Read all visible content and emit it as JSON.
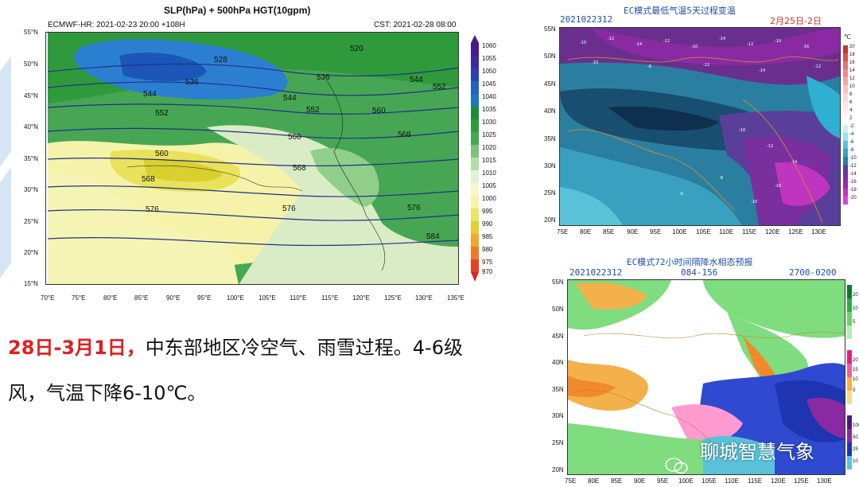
{
  "slm_map": {
    "title": "SLP(hPa) + 500hPa HGT(10gpm)",
    "model_info": "ECMWF-HR: 2021-02-23 20:00 +108H",
    "valid_time": "CST: 2021-02-28 08:00",
    "lat_labels": [
      "55°N",
      "50°N",
      "45°N",
      "40°N",
      "35°N",
      "30°N",
      "25°N",
      "20°N",
      "15°N"
    ],
    "lon_labels": [
      "70°E",
      "75°E",
      "80°E",
      "85°E",
      "90°E",
      "95°E",
      "100°E",
      "105°E",
      "110°E",
      "115°E",
      "120°E",
      "125°E",
      "130°E",
      "135°E"
    ],
    "colorbar": [
      "1060",
      "1055",
      "1050",
      "1045",
      "1040",
      "1035",
      "1030",
      "1025",
      "1020",
      "1015",
      "1010",
      "1005",
      "1000",
      "995",
      "990",
      "985",
      "980",
      "975",
      "970"
    ],
    "contour_labels": [
      "520",
      "528",
      "536",
      "544",
      "552",
      "560",
      "568",
      "576",
      "584"
    ]
  },
  "temp_map": {
    "title": "EC模式最低气温5天过程变温",
    "run": "2021022312",
    "period": "2月25日-2日",
    "lat_labels": [
      "55N",
      "50N",
      "45N",
      "40N",
      "35N",
      "30N",
      "25N",
      "20N"
    ],
    "lon_labels": [
      "75E",
      "80E",
      "85E",
      "90E",
      "95E",
      "100E",
      "105E",
      "110E",
      "115E",
      "120E",
      "125E",
      "130E"
    ],
    "colorbar_unit": "℃",
    "colorbar": [
      "20",
      "18",
      "16",
      "14",
      "12",
      "10",
      "8",
      "6",
      "4",
      "2",
      "-2",
      "-4",
      "-6",
      "-8",
      "-10",
      "-12",
      "-14",
      "-16",
      "-18",
      "-20"
    ]
  },
  "precip_map": {
    "title": "EC模式72小时间隔降水相态预报",
    "run": "2021022312",
    "hours": "084-156",
    "window": "2700-0200",
    "lat_labels": [
      "55N",
      "50N",
      "45N",
      "40N",
      "35N",
      "30N",
      "25N",
      "20N"
    ],
    "lon_labels": [
      "75E",
      "80E",
      "85E",
      "90E",
      "95E",
      "100E",
      "105E",
      "110E",
      "115E",
      "120E",
      "125E",
      "130E"
    ],
    "cbar_rain": [
      "20",
      "10",
      "5"
    ],
    "cbar_sleet": [
      "20",
      "15",
      "10",
      "5"
    ],
    "cbar_snow": [
      "100",
      "50",
      "25",
      "10"
    ]
  },
  "headline": {
    "date_range": "28日-3月1日，",
    "summary": "中东部地区冷空气、雨雪过程。4-6级",
    "summary2": "风，气温下降6-10℃。"
  },
  "watermark": "聊城智慧气象",
  "colors": {
    "highlight": "#e01f1f",
    "ocean_green": "#2f9a3c",
    "contour_blue": "#23308a"
  }
}
